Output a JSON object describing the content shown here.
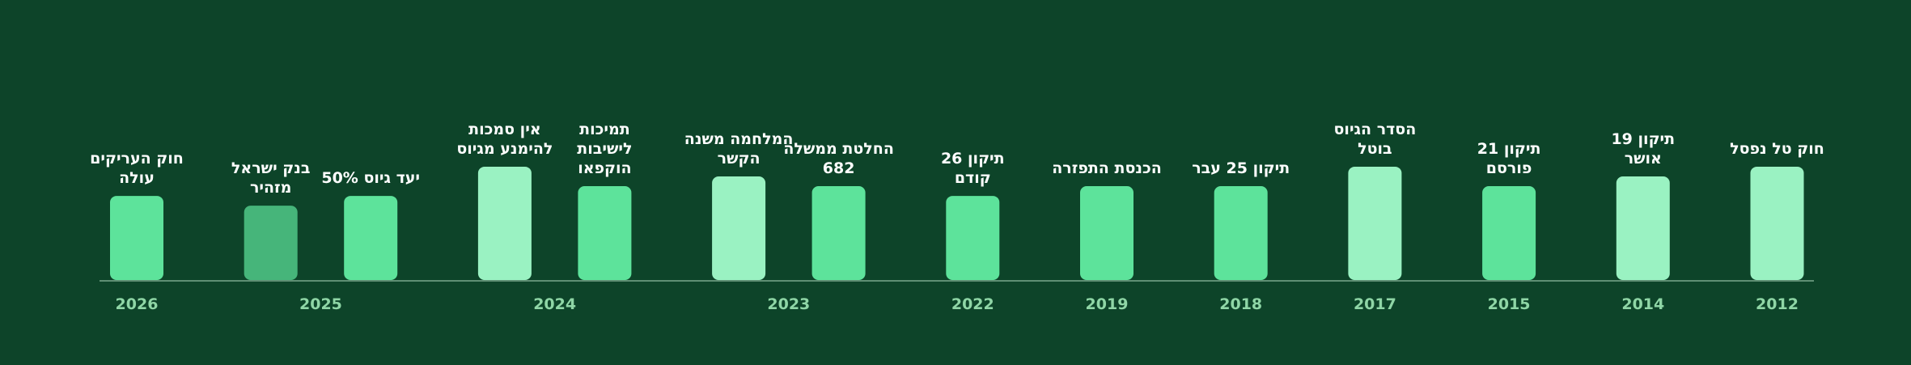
{
  "chart_data": {
    "type": "bar",
    "categories": [
      "חוק העריקים\nעולה",
      "בנק ישראל\nמזהיר",
      "יעד גיוס 50%",
      "אין סמכות\nלהימנע מגיוס",
      "תמיכות\nלישיבות\nהוקפאו",
      "המלחמה משנה\nהקשר",
      "החלטת ממשלה\n682",
      "תיקון 26\nקודם",
      "הכנסת התפזרה",
      "תיקון 25 עבר",
      "הסדר הגיוס\nבוטל",
      "תיקון 21\nפורסם",
      "תיקון 19\nאושר",
      "חוק טל נפסל"
    ],
    "x": [
      "2026",
      "2025",
      "2025",
      "2024",
      "2024",
      "2023",
      "2023",
      "2022",
      "2019",
      "2018",
      "2017",
      "2015",
      "2014",
      "2012"
    ],
    "values": [
      2,
      1,
      2,
      5,
      3,
      4,
      3,
      2,
      3,
      3,
      5,
      3,
      4,
      5
    ],
    "colors": [
      "#5de39b",
      "#46b57a",
      "#5de39b",
      "#9af2c2",
      "#5de39b",
      "#9af2c2",
      "#5de39b",
      "#5de39b",
      "#5de39b",
      "#5de39b",
      "#9af2c2",
      "#5de39b",
      "#9af2c2",
      "#9af2c2"
    ]
  }
}
